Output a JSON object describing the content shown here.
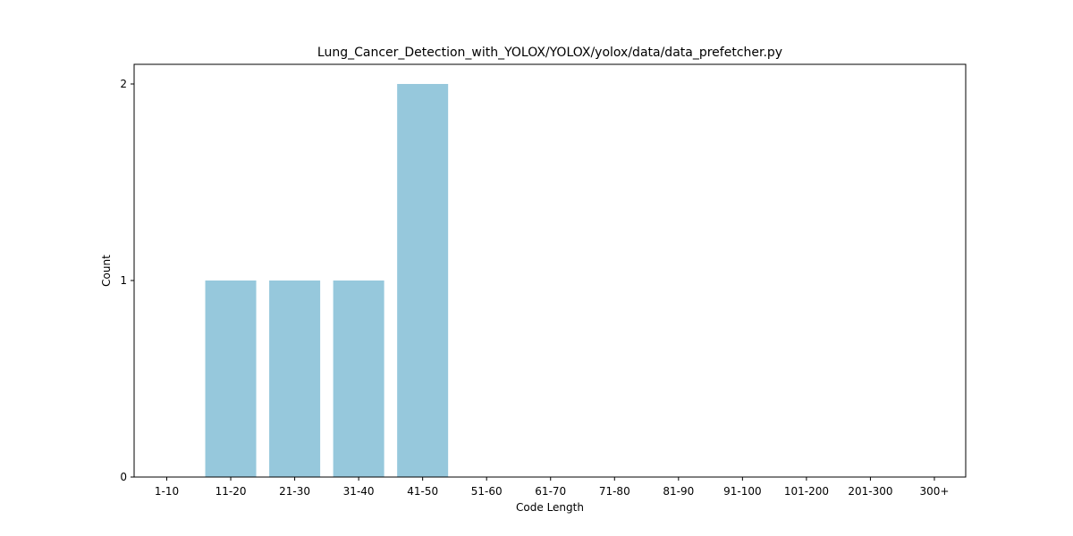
{
  "chart_data": {
    "type": "bar",
    "title": "Lung_Cancer_Detection_with_YOLOX/YOLOX/yolox/data/data_prefetcher.py",
    "xlabel": "Code Length",
    "ylabel": "Count",
    "categories": [
      "1-10",
      "11-20",
      "21-30",
      "31-40",
      "41-50",
      "51-60",
      "61-70",
      "71-80",
      "81-90",
      "91-100",
      "101-200",
      "201-300",
      "300+"
    ],
    "values": [
      0,
      1,
      1,
      1,
      2,
      0,
      0,
      0,
      0,
      0,
      0,
      0,
      0
    ],
    "yticks": [
      0,
      1,
      2
    ],
    "ylim": [
      0,
      2.1
    ],
    "grid": false,
    "legend": "none",
    "colors": {
      "bar": "#96c8dc",
      "axis": "#000000",
      "background": "#ffffff"
    }
  }
}
